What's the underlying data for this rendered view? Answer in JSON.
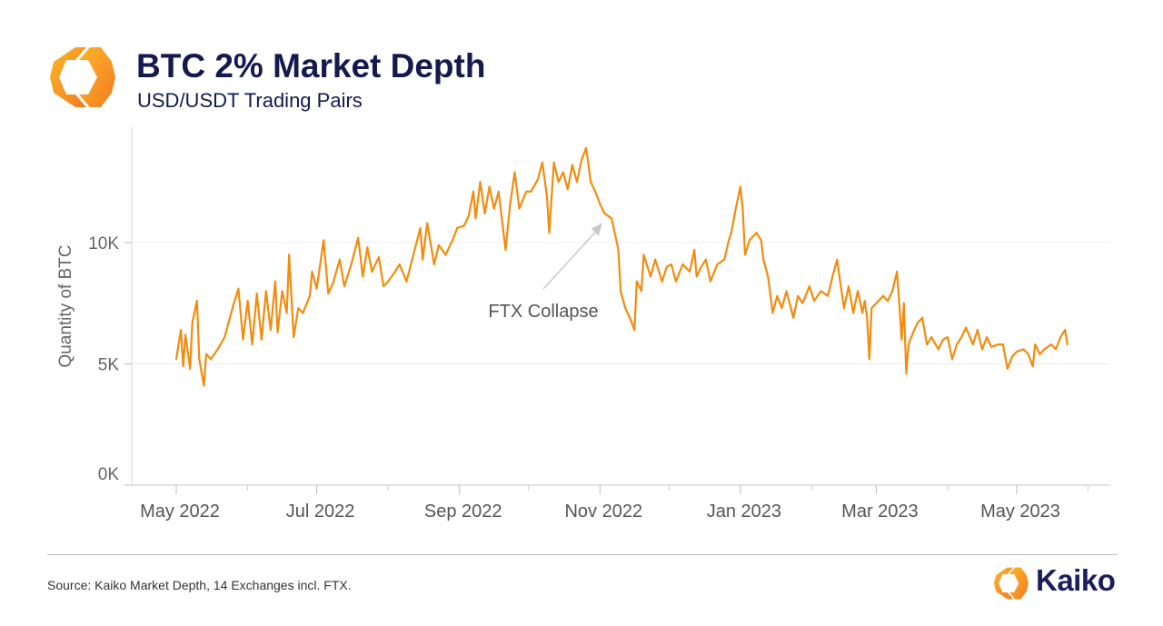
{
  "header": {
    "title": "BTC 2% Market Depth",
    "subtitle": "USD/USDT Trading Pairs",
    "logo_icon": "kaiko-hexagon-brackets-icon"
  },
  "footer": {
    "source": "Source: Kaiko Market Depth, 14 Exchanges incl. FTX.",
    "brand": "Kaiko"
  },
  "colors": {
    "line": "#f28c0f",
    "title": "#141a4e",
    "brand_navy": "#1a1f5c",
    "brand_orange": "#f7941d",
    "brand_yellow": "#fbb62a",
    "annotation": "#555555",
    "grid": "#ececec"
  },
  "chart_data": {
    "type": "line",
    "title": "BTC 2% Market Depth",
    "subtitle": "USD/USDT Trading Pairs",
    "xlabel": "",
    "ylabel": "Quantity of BTC",
    "ylim": [
      0,
      14500
    ],
    "y_ticks": [
      {
        "value": 0,
        "label": "0K"
      },
      {
        "value": 5000,
        "label": "5K"
      },
      {
        "value": 10000,
        "label": "10K"
      }
    ],
    "x_ticks": [
      {
        "date": "2022-05-01",
        "label": "May 2022"
      },
      {
        "date": "2022-07-01",
        "label": "Jul 2022"
      },
      {
        "date": "2022-09-01",
        "label": "Sep 2022"
      },
      {
        "date": "2022-11-01",
        "label": "Nov 2022"
      },
      {
        "date": "2023-01-01",
        "label": "Jan 2023"
      },
      {
        "date": "2023-03-01",
        "label": "Mar 2023"
      },
      {
        "date": "2023-05-01",
        "label": "May 2023"
      }
    ],
    "x_minor_ticks": [
      "2022-06-01",
      "2022-08-01",
      "2022-10-01",
      "2022-12-01",
      "2023-02-01",
      "2023-04-01",
      "2023-06-01"
    ],
    "grid": "horizontal",
    "legend": "none",
    "annotations": [
      {
        "text": "FTX Collapse",
        "date": "2022-11-02",
        "value": 10800,
        "arrow": true
      }
    ],
    "series": [
      {
        "points": [
          [
            "2022-05-01",
            5200
          ],
          [
            "2022-05-03",
            6400
          ],
          [
            "2022-05-04",
            4900
          ],
          [
            "2022-05-05",
            6200
          ],
          [
            "2022-05-07",
            4800
          ],
          [
            "2022-05-08",
            6700
          ],
          [
            "2022-05-10",
            7600
          ],
          [
            "2022-05-11",
            5200
          ],
          [
            "2022-05-13",
            4100
          ],
          [
            "2022-05-14",
            5400
          ],
          [
            "2022-05-16",
            5200
          ],
          [
            "2022-05-19",
            5600
          ],
          [
            "2022-05-22",
            6100
          ],
          [
            "2022-05-24",
            6800
          ],
          [
            "2022-05-26",
            7500
          ],
          [
            "2022-05-28",
            8100
          ],
          [
            "2022-05-30",
            6000
          ],
          [
            "2022-06-01",
            7600
          ],
          [
            "2022-06-03",
            5800
          ],
          [
            "2022-06-05",
            7900
          ],
          [
            "2022-06-07",
            6000
          ],
          [
            "2022-06-09",
            8000
          ],
          [
            "2022-06-11",
            6400
          ],
          [
            "2022-06-13",
            8400
          ],
          [
            "2022-06-14",
            6300
          ],
          [
            "2022-06-16",
            8000
          ],
          [
            "2022-06-18",
            7100
          ],
          [
            "2022-06-19",
            9500
          ],
          [
            "2022-06-21",
            6100
          ],
          [
            "2022-06-23",
            7300
          ],
          [
            "2022-06-25",
            7100
          ],
          [
            "2022-06-28",
            7800
          ],
          [
            "2022-06-29",
            8800
          ],
          [
            "2022-07-01",
            8100
          ],
          [
            "2022-07-04",
            10100
          ],
          [
            "2022-07-06",
            7900
          ],
          [
            "2022-07-08",
            8300
          ],
          [
            "2022-07-11",
            9300
          ],
          [
            "2022-07-13",
            8200
          ],
          [
            "2022-07-16",
            9100
          ],
          [
            "2022-07-19",
            10200
          ],
          [
            "2022-07-21",
            8600
          ],
          [
            "2022-07-23",
            9800
          ],
          [
            "2022-07-25",
            8800
          ],
          [
            "2022-07-28",
            9400
          ],
          [
            "2022-07-30",
            8200
          ],
          [
            "2022-08-01",
            8400
          ],
          [
            "2022-08-04",
            8800
          ],
          [
            "2022-08-06",
            9100
          ],
          [
            "2022-08-09",
            8400
          ],
          [
            "2022-08-12",
            9500
          ],
          [
            "2022-08-15",
            10600
          ],
          [
            "2022-08-16",
            9300
          ],
          [
            "2022-08-18",
            10800
          ],
          [
            "2022-08-21",
            9100
          ],
          [
            "2022-08-23",
            9900
          ],
          [
            "2022-08-26",
            9500
          ],
          [
            "2022-08-29",
            10100
          ],
          [
            "2022-08-31",
            10600
          ],
          [
            "2022-09-03",
            10700
          ],
          [
            "2022-09-05",
            11100
          ],
          [
            "2022-09-07",
            12100
          ],
          [
            "2022-09-08",
            11000
          ],
          [
            "2022-09-10",
            12500
          ],
          [
            "2022-09-12",
            11200
          ],
          [
            "2022-09-14",
            12300
          ],
          [
            "2022-09-16",
            11400
          ],
          [
            "2022-09-18",
            12100
          ],
          [
            "2022-09-21",
            9700
          ],
          [
            "2022-09-23",
            11600
          ],
          [
            "2022-09-25",
            12900
          ],
          [
            "2022-09-27",
            11400
          ],
          [
            "2022-09-30",
            12100
          ],
          [
            "2022-10-02",
            12100
          ],
          [
            "2022-10-05",
            12600
          ],
          [
            "2022-10-07",
            13300
          ],
          [
            "2022-10-09",
            11900
          ],
          [
            "2022-10-10",
            10400
          ],
          [
            "2022-10-12",
            13300
          ],
          [
            "2022-10-14",
            12500
          ],
          [
            "2022-10-16",
            12900
          ],
          [
            "2022-10-18",
            12200
          ],
          [
            "2022-10-20",
            13200
          ],
          [
            "2022-10-22",
            12500
          ],
          [
            "2022-10-24",
            13400
          ],
          [
            "2022-10-26",
            13900
          ],
          [
            "2022-10-28",
            12500
          ],
          [
            "2022-10-30",
            12100
          ],
          [
            "2022-11-01",
            11600
          ],
          [
            "2022-11-03",
            11200
          ],
          [
            "2022-11-06",
            11000
          ],
          [
            "2022-11-07",
            10600
          ],
          [
            "2022-11-09",
            9700
          ],
          [
            "2022-11-10",
            8000
          ],
          [
            "2022-11-12",
            7300
          ],
          [
            "2022-11-14",
            6900
          ],
          [
            "2022-11-16",
            6400
          ],
          [
            "2022-11-17",
            8400
          ],
          [
            "2022-11-19",
            8000
          ],
          [
            "2022-11-20",
            9500
          ],
          [
            "2022-11-23",
            8600
          ],
          [
            "2022-11-25",
            9300
          ],
          [
            "2022-11-28",
            8400
          ],
          [
            "2022-11-30",
            9000
          ],
          [
            "2022-12-02",
            9100
          ],
          [
            "2022-12-04",
            8400
          ],
          [
            "2022-12-07",
            9100
          ],
          [
            "2022-12-10",
            8800
          ],
          [
            "2022-12-12",
            9700
          ],
          [
            "2022-12-13",
            8600
          ],
          [
            "2022-12-15",
            9000
          ],
          [
            "2022-12-17",
            9300
          ],
          [
            "2022-12-19",
            8400
          ],
          [
            "2022-12-22",
            9100
          ],
          [
            "2022-12-25",
            9300
          ],
          [
            "2022-12-27",
            10100
          ],
          [
            "2022-12-28",
            10400
          ],
          [
            "2022-12-30",
            11400
          ],
          [
            "2023-01-01",
            12300
          ],
          [
            "2023-01-02",
            11400
          ],
          [
            "2023-01-03",
            9500
          ],
          [
            "2023-01-05",
            10100
          ],
          [
            "2023-01-08",
            10400
          ],
          [
            "2023-01-10",
            10100
          ],
          [
            "2023-01-11",
            9300
          ],
          [
            "2023-01-13",
            8600
          ],
          [
            "2023-01-15",
            7100
          ],
          [
            "2023-01-17",
            7800
          ],
          [
            "2023-01-19",
            7300
          ],
          [
            "2023-01-21",
            8000
          ],
          [
            "2023-01-24",
            6900
          ],
          [
            "2023-01-26",
            7800
          ],
          [
            "2023-01-28",
            7500
          ],
          [
            "2023-01-31",
            8200
          ],
          [
            "2023-02-02",
            7600
          ],
          [
            "2023-02-05",
            8000
          ],
          [
            "2023-02-08",
            7800
          ],
          [
            "2023-02-10",
            8600
          ],
          [
            "2023-02-12",
            9300
          ],
          [
            "2023-02-13",
            8600
          ],
          [
            "2023-02-15",
            7300
          ],
          [
            "2023-02-17",
            8200
          ],
          [
            "2023-02-19",
            7100
          ],
          [
            "2023-02-21",
            8000
          ],
          [
            "2023-02-23",
            7100
          ],
          [
            "2023-02-24",
            7600
          ],
          [
            "2023-02-25",
            6900
          ],
          [
            "2023-02-26",
            5200
          ],
          [
            "2023-02-27",
            7300
          ],
          [
            "2023-03-02",
            7600
          ],
          [
            "2023-03-04",
            7800
          ],
          [
            "2023-03-06",
            7600
          ],
          [
            "2023-03-08",
            8000
          ],
          [
            "2023-03-10",
            8800
          ],
          [
            "2023-03-11",
            7500
          ],
          [
            "2023-03-12",
            6000
          ],
          [
            "2023-03-13",
            7500
          ],
          [
            "2023-03-14",
            4600
          ],
          [
            "2023-03-15",
            5800
          ],
          [
            "2023-03-17",
            6300
          ],
          [
            "2023-03-19",
            6700
          ],
          [
            "2023-03-21",
            6900
          ],
          [
            "2023-03-23",
            5800
          ],
          [
            "2023-03-25",
            6100
          ],
          [
            "2023-03-28",
            5600
          ],
          [
            "2023-03-30",
            6000
          ],
          [
            "2023-04-01",
            6100
          ],
          [
            "2023-04-03",
            5200
          ],
          [
            "2023-04-05",
            5800
          ],
          [
            "2023-04-07",
            6100
          ],
          [
            "2023-04-09",
            6500
          ],
          [
            "2023-04-12",
            5800
          ],
          [
            "2023-04-14",
            6400
          ],
          [
            "2023-04-16",
            5600
          ],
          [
            "2023-04-18",
            6100
          ],
          [
            "2023-04-20",
            5700
          ],
          [
            "2023-04-23",
            5800
          ],
          [
            "2023-04-25",
            5800
          ],
          [
            "2023-04-27",
            4800
          ],
          [
            "2023-04-29",
            5300
          ],
          [
            "2023-05-01",
            5500
          ],
          [
            "2023-05-04",
            5600
          ],
          [
            "2023-05-06",
            5400
          ],
          [
            "2023-05-08",
            4900
          ],
          [
            "2023-05-09",
            5800
          ],
          [
            "2023-05-11",
            5400
          ],
          [
            "2023-05-13",
            5600
          ],
          [
            "2023-05-16",
            5800
          ],
          [
            "2023-05-18",
            5600
          ],
          [
            "2023-05-20",
            6100
          ],
          [
            "2023-05-22",
            6400
          ],
          [
            "2023-05-23",
            5800
          ]
        ]
      }
    ]
  }
}
